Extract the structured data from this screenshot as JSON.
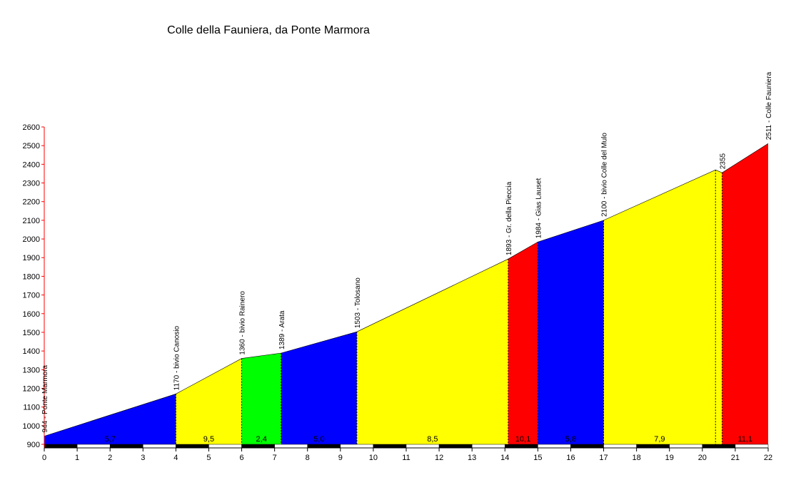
{
  "chart_data": {
    "type": "area",
    "title": "Colle della Fauniera, da Ponte Marmora",
    "xlabel": "",
    "ylabel": "",
    "xlim": [
      0,
      22
    ],
    "ylim": [
      900,
      2600
    ],
    "x_ticks": [
      "0",
      "1",
      "2",
      "3",
      "4",
      "5",
      "6",
      "7",
      "8",
      "9",
      "10",
      "11",
      "12",
      "13",
      "14",
      "15",
      "16",
      "17",
      "18",
      "19",
      "20",
      "21",
      "22"
    ],
    "y_ticks": [
      "900",
      "1000",
      "1100",
      "1200",
      "1300",
      "1400",
      "1500",
      "1600",
      "1700",
      "1800",
      "1900",
      "2000",
      "2100",
      "2200",
      "2300",
      "2400",
      "2500",
      "2600"
    ],
    "profile": [
      {
        "x": 0,
        "y": 944
      },
      {
        "x": 4.0,
        "y": 1170
      },
      {
        "x": 6.0,
        "y": 1360
      },
      {
        "x": 7.2,
        "y": 1389
      },
      {
        "x": 9.5,
        "y": 1503
      },
      {
        "x": 14.1,
        "y": 1893
      },
      {
        "x": 15.0,
        "y": 1984
      },
      {
        "x": 17.0,
        "y": 2100
      },
      {
        "x": 20.4,
        "y": 2370
      },
      {
        "x": 20.6,
        "y": 2355
      },
      {
        "x": 22.0,
        "y": 2511
      }
    ],
    "segments": [
      {
        "from": 0,
        "to": 4.0,
        "gradient": "5,7",
        "color": "#0000ff"
      },
      {
        "from": 4.0,
        "to": 6.0,
        "gradient": "9,5",
        "color": "#ffff00"
      },
      {
        "from": 6.0,
        "to": 7.2,
        "gradient": "2,4",
        "color": "#00ff00"
      },
      {
        "from": 7.2,
        "to": 9.5,
        "gradient": "5,0",
        "color": "#0000ff"
      },
      {
        "from": 9.5,
        "to": 14.1,
        "gradient": "8,5",
        "color": "#ffff00"
      },
      {
        "from": 14.1,
        "to": 15.0,
        "gradient": "10,1",
        "color": "#ff0000"
      },
      {
        "from": 15.0,
        "to": 17.0,
        "gradient": "5,8",
        "color": "#0000ff"
      },
      {
        "from": 17.0,
        "to": 20.4,
        "gradient": "7,9",
        "color": "#ffff00"
      },
      {
        "from": 20.4,
        "to": 20.6,
        "gradient": "",
        "color": "#ffff00"
      },
      {
        "from": 20.6,
        "to": 22.0,
        "gradient": "11,1",
        "color": "#ff0000"
      }
    ],
    "waypoints": [
      {
        "x": 0,
        "y": 944,
        "label": "944 - Ponte Marmora"
      },
      {
        "x": 4.0,
        "y": 1170,
        "label": "1170 - bivio Canosio"
      },
      {
        "x": 6.0,
        "y": 1360,
        "label": "1360 - bivio Rainero"
      },
      {
        "x": 7.2,
        "y": 1389,
        "label": "1389 - Arata"
      },
      {
        "x": 9.5,
        "y": 1503,
        "label": "1503 - Tolosano"
      },
      {
        "x": 14.1,
        "y": 1893,
        "label": "1893 - Gr. della Pieccia"
      },
      {
        "x": 15.0,
        "y": 1984,
        "label": "1984 - Gias Lauset"
      },
      {
        "x": 17.0,
        "y": 2100,
        "label": "2100 - bivio Colle del Mulo"
      },
      {
        "x": 20.6,
        "y": 2355,
        "label": "2355"
      },
      {
        "x": 22.0,
        "y": 2511,
        "label": "2511 - Colle Fauniera"
      }
    ]
  }
}
